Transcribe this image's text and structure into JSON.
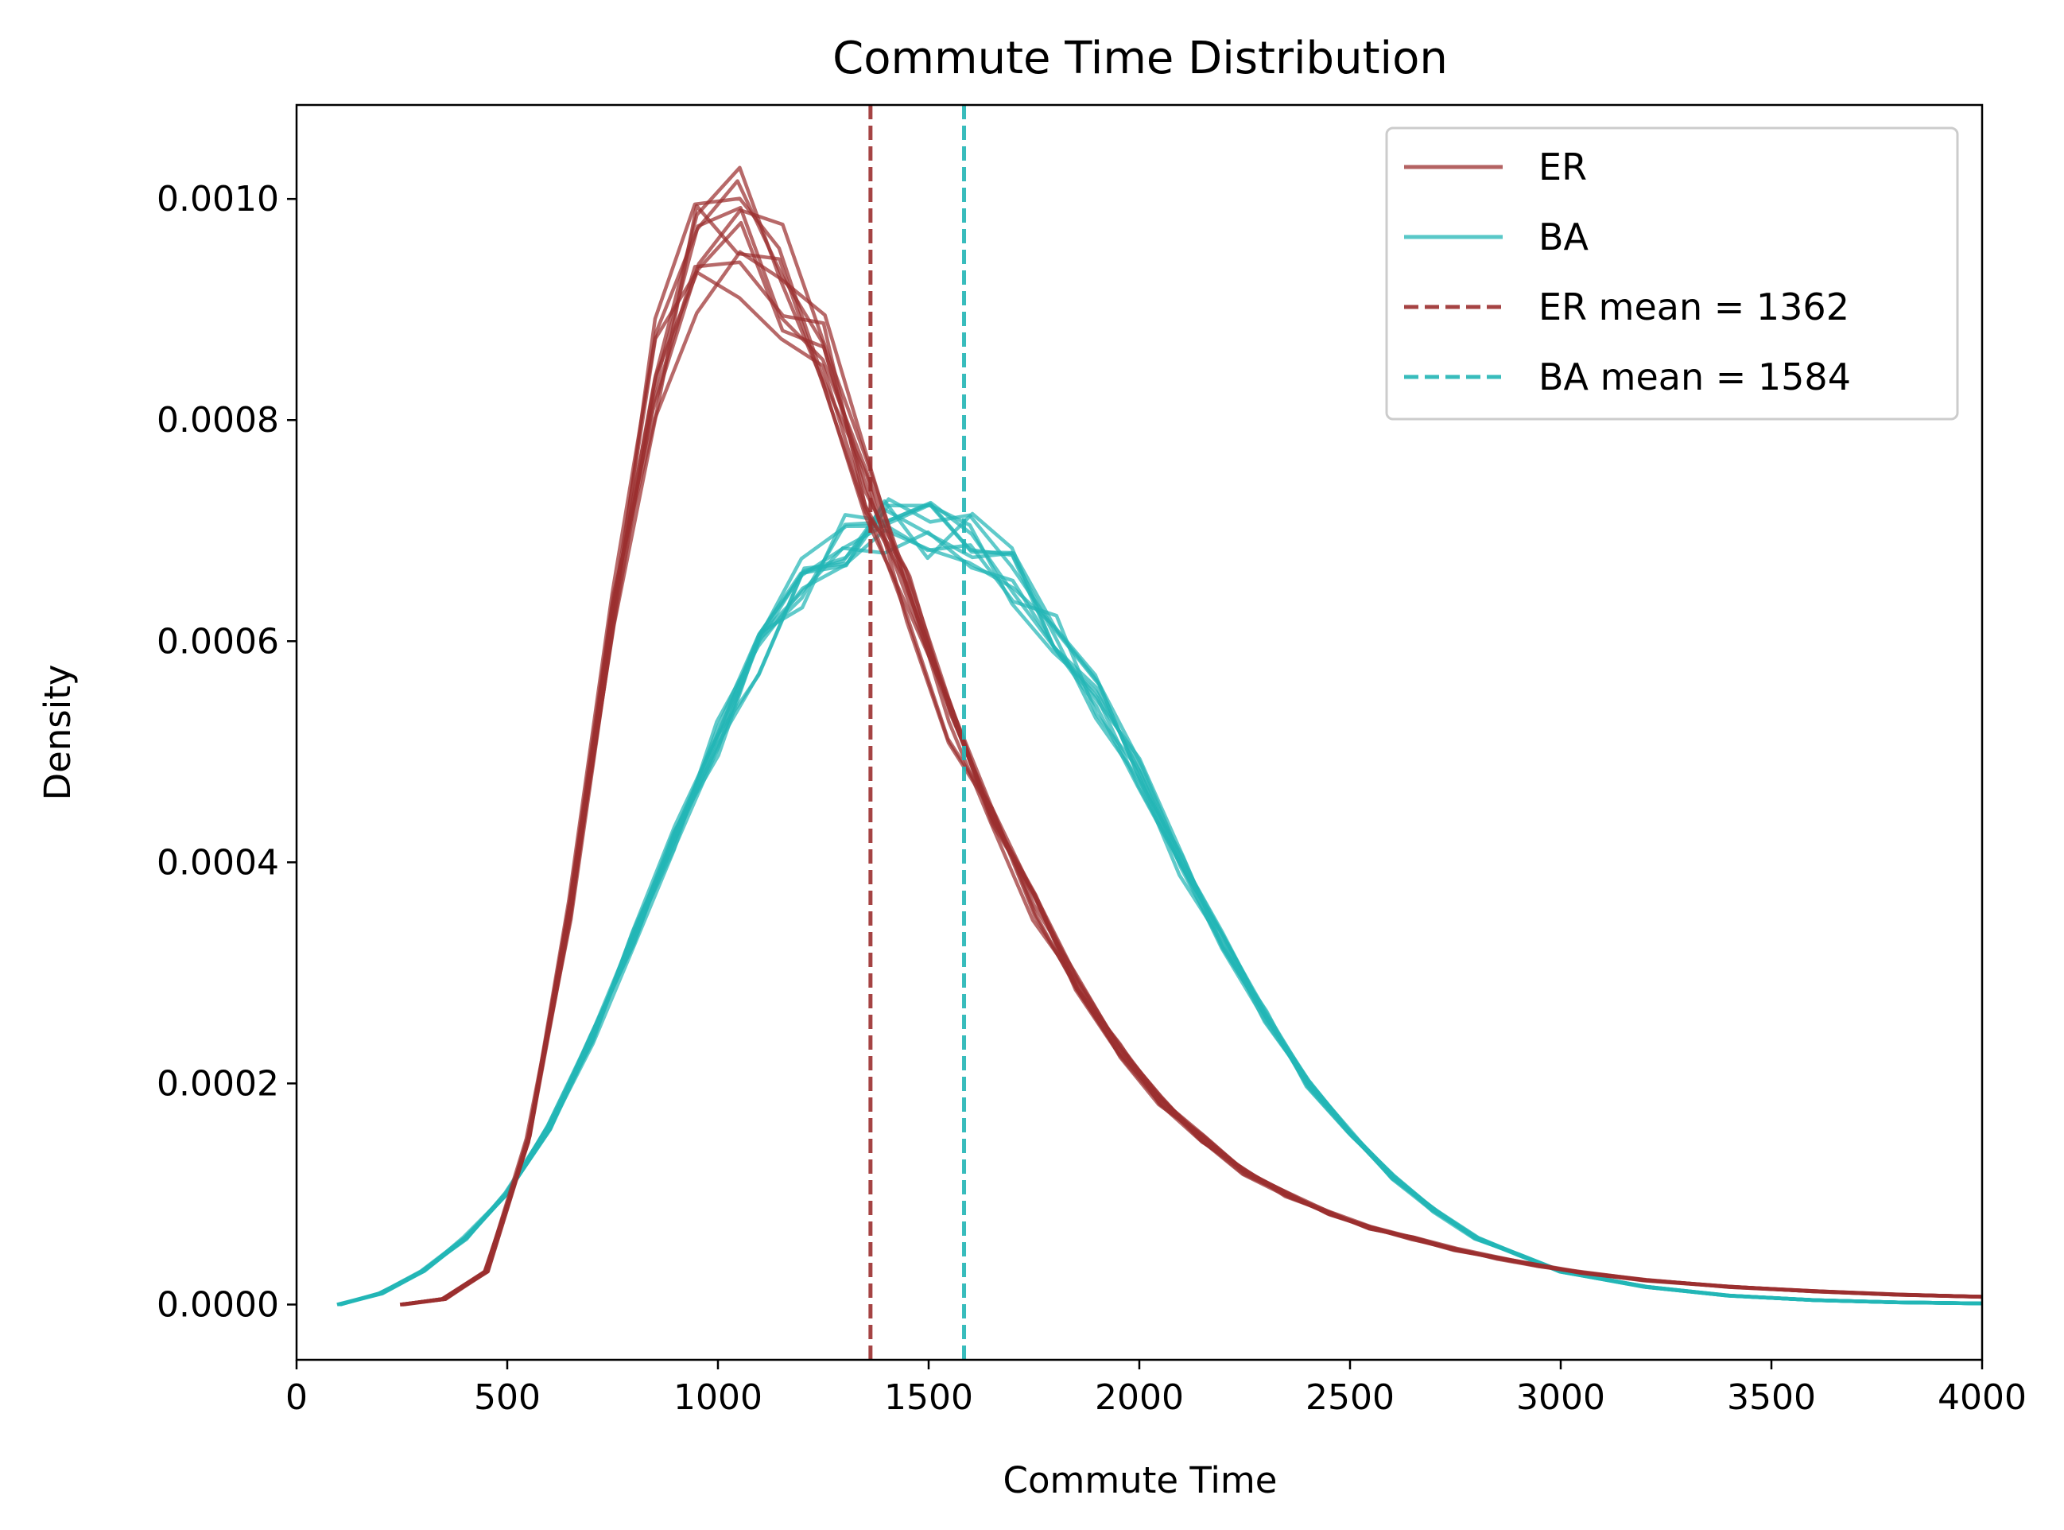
{
  "chart_data": {
    "type": "line",
    "title": "Commute Time Distribution",
    "xlabel": "Commute Time",
    "ylabel": "Density",
    "xlim": [
      0,
      4000
    ],
    "ylim": [
      -5e-05,
      0.001085
    ],
    "xticks": [
      0,
      500,
      1000,
      1500,
      2000,
      2500,
      3000,
      3500,
      4000
    ],
    "xtick_labels": [
      "0",
      "500",
      "1000",
      "1500",
      "2000",
      "2500",
      "3000",
      "3500",
      "4000"
    ],
    "yticks": [
      0.0,
      0.0002,
      0.0004,
      0.0006,
      0.0008,
      0.001
    ],
    "ytick_labels": [
      "0.0000",
      "0.0002",
      "0.0004",
      "0.0006",
      "0.0008",
      "0.0010"
    ],
    "grid": false,
    "legend_position": "top-right",
    "colors": {
      "ER": "#9b2f2f",
      "BA": "#22b5b5"
    },
    "series": [
      {
        "name": "ER",
        "x": [
          250,
          350,
          450,
          550,
          650,
          750,
          850,
          950,
          1050,
          1150,
          1250,
          1350,
          1450,
          1550,
          1650,
          1750,
          1850,
          1950,
          2050,
          2150,
          2250,
          2350,
          2450,
          2550,
          2650,
          2750,
          2850,
          2950,
          3050,
          3200,
          3400,
          3600,
          3800,
          4000
        ],
        "y": [
          0.0,
          5e-06,
          3e-05,
          0.00015,
          0.00036,
          0.00062,
          0.00085,
          0.00095,
          0.00097,
          0.00093,
          0.00085,
          0.00075,
          0.00064,
          0.00053,
          0.00044,
          0.00036,
          0.00029,
          0.00023,
          0.000185,
          0.00015,
          0.00012,
          0.0001,
          8.3e-05,
          7e-05,
          6e-05,
          5e-05,
          4.2e-05,
          3.5e-05,
          2.9e-05,
          2.2e-05,
          1.6e-05,
          1.2e-05,
          9e-06,
          7e-06
        ]
      },
      {
        "name": "BA",
        "x": [
          100,
          200,
          300,
          400,
          500,
          600,
          700,
          800,
          900,
          1000,
          1100,
          1200,
          1300,
          1400,
          1500,
          1600,
          1700,
          1800,
          1900,
          2000,
          2100,
          2200,
          2300,
          2400,
          2500,
          2600,
          2700,
          2800,
          2900,
          3000,
          3200,
          3400,
          3600,
          3800,
          4000
        ],
        "y": [
          0.0,
          1e-05,
          3e-05,
          6e-05,
          0.0001,
          0.00016,
          0.00024,
          0.00033,
          0.00042,
          0.00051,
          0.00059,
          0.00065,
          0.00069,
          0.0007,
          0.0007,
          0.00069,
          0.00066,
          0.00061,
          0.00055,
          0.00048,
          0.0004,
          0.00033,
          0.00026,
          0.0002,
          0.000155,
          0.000115,
          8.5e-05,
          6e-05,
          4.5e-05,
          3e-05,
          1.6e-05,
          8e-06,
          4e-06,
          2e-06,
          1e-06
        ]
      }
    ],
    "runs_per_series": 10,
    "mean_lines": [
      {
        "name": "ER mean = 1362",
        "x": 1362
      },
      {
        "name": "BA mean = 1584",
        "x": 1584
      }
    ],
    "legend_entries": [
      "ER",
      "BA",
      "ER mean = 1362",
      "BA mean = 1584"
    ]
  }
}
